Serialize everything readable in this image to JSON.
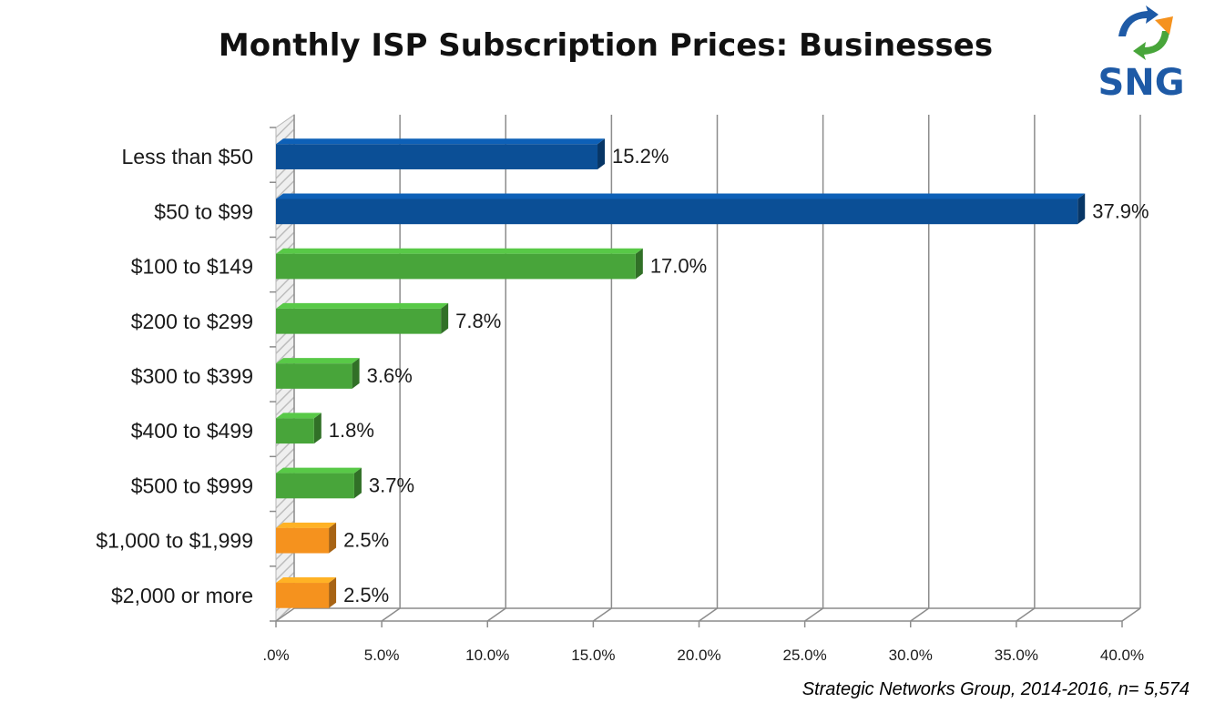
{
  "chart_data": {
    "type": "bar",
    "orientation": "horizontal",
    "title": "Monthly ISP Subscription Prices: Businesses",
    "categories": [
      "Less than $50",
      "$50 to $99",
      "$100 to $149",
      "$200 to $299",
      "$300 to $399",
      "$400 to $499",
      "$500 to $999",
      "$1,000 to $1,999",
      "$2,000 or more"
    ],
    "values": [
      15.2,
      37.9,
      17.0,
      7.8,
      3.6,
      1.8,
      3.7,
      2.5,
      2.5
    ],
    "value_labels": [
      "15.2%",
      "37.9%",
      "17.0%",
      "7.8%",
      "3.6%",
      "1.8%",
      "3.7%",
      "2.5%",
      "2.5%"
    ],
    "bar_colors": [
      "#0b4f96",
      "#0b4f96",
      "#48a53a",
      "#48a53a",
      "#48a53a",
      "#48a53a",
      "#48a53a",
      "#f5921e",
      "#f5921e"
    ],
    "xlim": [
      0,
      40
    ],
    "xticks": [
      ".0%",
      "5.0%",
      "10.0%",
      "15.0%",
      "20.0%",
      "25.0%",
      "30.0%",
      "35.0%",
      "40.0%"
    ],
    "xlabel": "",
    "ylabel": "",
    "grid": true,
    "legend": "none",
    "source": "Strategic Networks Group, 2014-2016, n= 5,574"
  },
  "logo": {
    "text": "SNG",
    "colors": [
      "#1e5aa6",
      "#48a53a",
      "#f5921e"
    ]
  }
}
